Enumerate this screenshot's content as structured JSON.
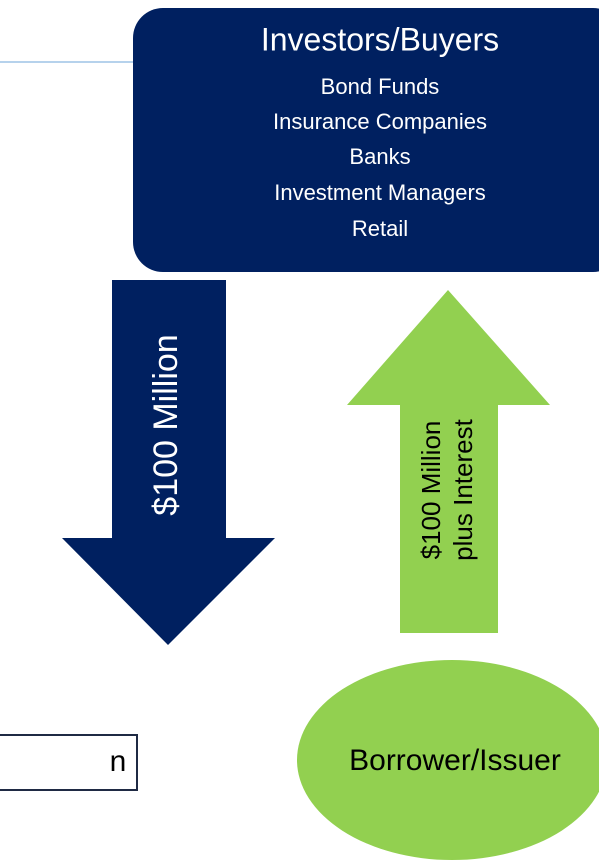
{
  "investors": {
    "title": "Investors/Buyers",
    "items": [
      "Bond Funds",
      "Insurance Companies",
      "Banks",
      "Investment Managers",
      "Retail"
    ]
  },
  "down_arrow": {
    "label": "$100 Million"
  },
  "up_arrow": {
    "lines": [
      "$100 Million",
      "plus Interest"
    ]
  },
  "issuer": {
    "label": "Borrower/Issuer"
  },
  "side_box": {
    "label": "n"
  }
}
